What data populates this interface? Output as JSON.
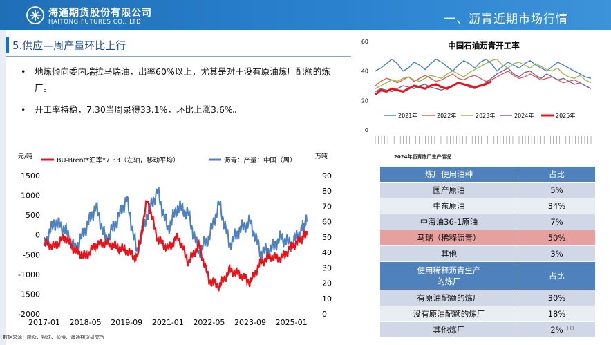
{
  "header": {
    "logo_cn": "海通期货股份有限公司",
    "logo_en": "HAITONG FUTURES CO., LTD.",
    "section_title": "一、沥青近期市场行情"
  },
  "subtitle": "5.供应—周产量环比上行",
  "bullets": [
    {
      "dot": "•",
      "text": "地炼倾向委内瑞拉马瑞油，出率60%以上，尤其是对于没有原油炼厂配额的炼厂。"
    },
    {
      "dot": "•",
      "text": "开工率持稳，7.30当周录得33.1%，环比上涨3.6%。"
    }
  ],
  "source": "数据来源：隆众、钢联、彭博、海通期货研究所",
  "page_number": "10",
  "chart_data": [
    {
      "type": "line",
      "left_unit": "元/吨",
      "right_unit": "万吨",
      "series": [
        {
          "name": "BU-Brent*汇率*7.33（左轴，移动平均）",
          "axis": "left",
          "color": "#e8141b",
          "points": [
            [
              "2017-01",
              -200
            ],
            [
              "2017-05",
              -300
            ],
            [
              "2017-09",
              -50
            ],
            [
              "2018-01",
              -400
            ],
            [
              "2018-05",
              -550
            ],
            [
              "2018-09",
              -250
            ],
            [
              "2019-01",
              -200
            ],
            [
              "2019-05",
              -300
            ],
            [
              "2019-09",
              -400
            ],
            [
              "2020-01",
              -600
            ],
            [
              "2020-05",
              900
            ],
            [
              "2020-09",
              -100
            ],
            [
              "2021-01",
              -350
            ],
            [
              "2021-05",
              -50
            ],
            [
              "2021-09",
              -700
            ],
            [
              "2022-01",
              -250
            ],
            [
              "2022-05",
              -1150
            ],
            [
              "2022-09",
              -1300
            ],
            [
              "2023-01",
              -900
            ],
            [
              "2023-05",
              -1000
            ],
            [
              "2023-09",
              -1200
            ],
            [
              "2024-01",
              -700
            ],
            [
              "2024-05",
              -550
            ],
            [
              "2024-09",
              -600
            ],
            [
              "2025-01",
              -300
            ],
            [
              "2025-05",
              -100
            ],
            [
              "2025-07",
              100
            ]
          ]
        },
        {
          "name": "沥青：产量：中国（周）",
          "axis": "right",
          "color": "#4f81bd",
          "points": [
            [
              "2017-01",
              45
            ],
            [
              "2017-05",
              60
            ],
            [
              "2017-09",
              55
            ],
            [
              "2018-01",
              42
            ],
            [
              "2018-05",
              55
            ],
            [
              "2018-09",
              70
            ],
            [
              "2019-01",
              48
            ],
            [
              "2019-05",
              60
            ],
            [
              "2019-09",
              75
            ],
            [
              "2020-01",
              40
            ],
            [
              "2020-05",
              65
            ],
            [
              "2020-09",
              80
            ],
            [
              "2021-01",
              55
            ],
            [
              "2021-05",
              70
            ],
            [
              "2021-09",
              65
            ],
            [
              "2022-01",
              40
            ],
            [
              "2022-05",
              50
            ],
            [
              "2022-09",
              72
            ],
            [
              "2023-01",
              45
            ],
            [
              "2023-05",
              55
            ],
            [
              "2023-09",
              60
            ],
            [
              "2024-01",
              40
            ],
            [
              "2024-05",
              42
            ],
            [
              "2024-09",
              50
            ],
            [
              "2025-01",
              45
            ],
            [
              "2025-05",
              55
            ],
            [
              "2025-07",
              60
            ]
          ]
        }
      ],
      "y_left": {
        "min": -2000,
        "max": 1500,
        "ticks": [
          "1500",
          "1000",
          "500",
          "0",
          "-500",
          "-1000",
          "-1500",
          "-2000"
        ]
      },
      "y_right": {
        "min": 0,
        "max": 90,
        "ticks": [
          "90",
          "80",
          "70",
          "60",
          "50",
          "40",
          "30",
          "20",
          "10",
          "0"
        ]
      },
      "x_ticks": [
        "2017-01",
        "2018-05",
        "2019-09",
        "2021-01",
        "2022-05",
        "2023-09",
        "2025-01"
      ],
      "legend_position": "top"
    },
    {
      "type": "line",
      "title": "中国石油沥青开工率",
      "y_ticks": [
        "60",
        "40",
        "20",
        "0"
      ],
      "ylim": [
        0,
        60
      ],
      "series": [
        {
          "name": "2021年",
          "color": "#4f81bd",
          "values": [
            40,
            42,
            45,
            48,
            45,
            40,
            42,
            46,
            44,
            41,
            45,
            48,
            46,
            43,
            40,
            44,
            47,
            45,
            42,
            46,
            48,
            45,
            40,
            43,
            46,
            44,
            42,
            45,
            47,
            44,
            42,
            40,
            43,
            46,
            44,
            42,
            40,
            38,
            36,
            35
          ]
        },
        {
          "name": "2022年",
          "color": "#e0605a",
          "values": [
            30,
            33,
            35,
            34,
            32,
            34,
            36,
            33,
            35,
            37,
            35,
            33,
            34,
            36,
            38,
            35,
            34,
            36,
            37,
            35,
            33,
            34,
            36,
            38,
            40,
            37,
            35,
            36,
            38,
            36,
            34,
            35,
            36,
            34,
            32,
            33,
            34,
            32,
            30,
            28
          ]
        },
        {
          "name": "2023年",
          "color": "#9bbb59",
          "values": [
            28,
            30,
            32,
            34,
            33,
            35,
            36,
            34,
            33,
            35,
            37,
            36,
            35,
            38,
            40,
            38,
            36,
            39,
            41,
            43,
            45,
            47,
            48,
            44,
            42,
            45,
            46,
            44,
            42,
            45,
            43,
            41,
            40,
            42,
            38,
            36,
            35,
            37,
            34,
            32
          ]
        },
        {
          "name": "2024年",
          "color": "#8064a2",
          "values": [
            26,
            28,
            27,
            26,
            28,
            30,
            29,
            28,
            30,
            31,
            29,
            28,
            27,
            29,
            30,
            32,
            31,
            29,
            28,
            30,
            32,
            35,
            38,
            40,
            42,
            38,
            36,
            39,
            40,
            37,
            35,
            38,
            36,
            34,
            35,
            33,
            31,
            32,
            30,
            28
          ]
        },
        {
          "name": "2025年",
          "color": "#e8141b",
          "values": [
            24,
            27,
            26,
            28,
            27,
            26,
            28,
            30,
            29,
            28,
            30,
            31,
            29,
            28,
            30,
            32,
            31,
            30,
            29,
            30,
            31,
            33
          ]
        }
      ],
      "legend_position": "bottom"
    }
  ],
  "table": {
    "caption": "2024年沥青炼厂生产情况",
    "rows": [
      {
        "label": "炼厂使用油种",
        "value": "占比",
        "style": "hdr"
      },
      {
        "label": "国产原油",
        "value": "5%",
        "style": "odd"
      },
      {
        "label": "中东原油",
        "value": "34%",
        "style": "even"
      },
      {
        "label": "中海油36-1原油",
        "value": "7%",
        "style": "odd"
      },
      {
        "label": "马瑞（稀释沥青）",
        "value": "50%",
        "style": "hl"
      },
      {
        "label": "其他",
        "value": "3%",
        "style": "odd"
      },
      {
        "label": "使用稀释沥青生产\n的炼厂",
        "value": "占比",
        "style": "hdr"
      },
      {
        "label": "有原油配额的炼厂",
        "value": "30%",
        "style": "odd"
      },
      {
        "label": "没有原油配额的炼厂",
        "value": "18%",
        "style": "even"
      },
      {
        "label": "其他炼厂",
        "value": "2%",
        "style": "odd"
      }
    ]
  }
}
